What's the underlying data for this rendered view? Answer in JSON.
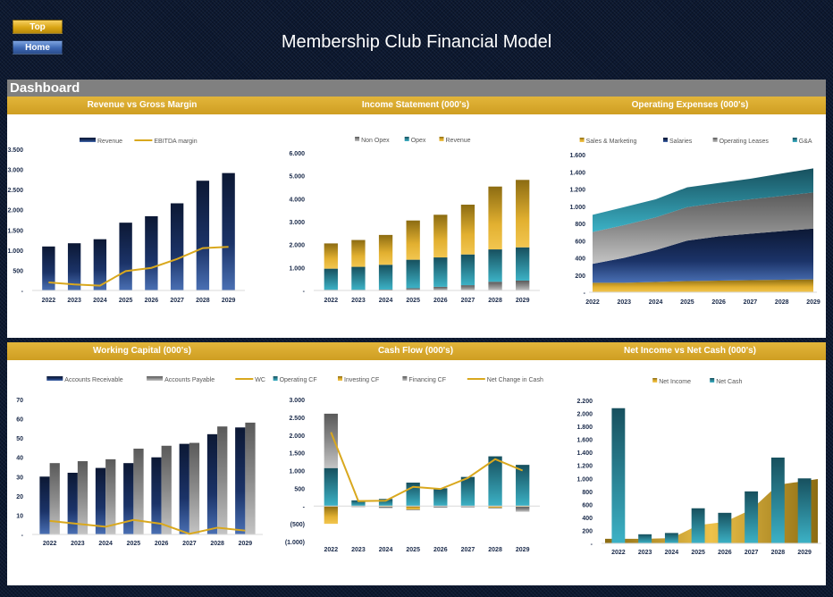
{
  "app": {
    "title": "Membership Club Financial Model",
    "top_button": "Top",
    "home_button": "Home",
    "section": "Dashboard"
  },
  "colors": {
    "navy": "#13285a",
    "teal": "#1e7f90",
    "gold": "#d9a81e",
    "gray": "#808080",
    "header_gold": "#d6a82c"
  },
  "chart_data": [
    {
      "title": "Revenue vs Gross Margin",
      "type": "bar",
      "categories": [
        "2022",
        "2023",
        "2024",
        "2025",
        "2026",
        "2027",
        "2028",
        "2029"
      ],
      "ylim": [
        0,
        3500
      ],
      "ticks": [
        0,
        500,
        1000,
        1500,
        2000,
        2500,
        3000,
        3500
      ],
      "tick_labels": [
        "-",
        "500",
        "1.000",
        "1.500",
        "2.000",
        "2.500",
        "3.000",
        "3.500"
      ],
      "series": [
        {
          "name": "Revenue",
          "kind": "bar",
          "color": "navy",
          "values": [
            1090,
            1170,
            1270,
            1680,
            1840,
            2160,
            2720,
            2910
          ]
        },
        {
          "name": "EBITDA margin",
          "kind": "line",
          "color": "gold",
          "values": [
            200,
            150,
            120,
            480,
            560,
            780,
            1050,
            1080
          ]
        }
      ]
    },
    {
      "title": "Income Statement (000's)",
      "type": "bar",
      "categories": [
        "2022",
        "2023",
        "2024",
        "2025",
        "2026",
        "2027",
        "2028",
        "2029"
      ],
      "ylim": [
        0,
        6000
      ],
      "ticks": [
        0,
        1000,
        2000,
        3000,
        4000,
        5000,
        6000
      ],
      "tick_labels": [
        "-",
        "1.000",
        "2.000",
        "3.000",
        "4.000",
        "5.000",
        "6.000"
      ],
      "series": [
        {
          "name": "Non Opex",
          "kind": "stack",
          "color": "gray",
          "values": [
            30,
            30,
            40,
            100,
            160,
            230,
            380,
            430
          ]
        },
        {
          "name": "Opex",
          "kind": "stack",
          "color": "teal",
          "values": [
            920,
            1000,
            1080,
            1240,
            1280,
            1340,
            1410,
            1450
          ]
        },
        {
          "name": "Revenue",
          "kind": "stack",
          "color": "gold",
          "values": [
            1100,
            1170,
            1300,
            1710,
            1860,
            2170,
            2740,
            2940
          ]
        }
      ]
    },
    {
      "title": "Operating Expenses (000's)",
      "type": "area",
      "categories": [
        "2022",
        "2023",
        "2024",
        "2025",
        "2026",
        "2027",
        "2028",
        "2029"
      ],
      "ylim": [
        0,
        1600
      ],
      "ticks": [
        0,
        200,
        400,
        600,
        800,
        1000,
        1200,
        1400,
        1600
      ],
      "tick_labels": [
        "-",
        "200",
        "400",
        "600",
        "800",
        "1.000",
        "1.200",
        "1.400",
        "1.600"
      ],
      "series": [
        {
          "name": "Sales & Marketing",
          "kind": "stackarea",
          "color": "gold",
          "values": [
            110,
            110,
            120,
            130,
            135,
            140,
            145,
            150
          ]
        },
        {
          "name": "Salaries",
          "kind": "stackarea",
          "color": "navy",
          "values": [
            220,
            290,
            370,
            470,
            515,
            540,
            565,
            590
          ]
        },
        {
          "name": "Operating Leases",
          "kind": "stackarea",
          "color": "gray",
          "values": [
            370,
            380,
            380,
            390,
            390,
            400,
            410,
            420
          ]
        },
        {
          "name": "G&A",
          "kind": "stackarea",
          "color": "teal",
          "values": [
            200,
            210,
            210,
            230,
            230,
            240,
            260,
            280
          ]
        }
      ]
    },
    {
      "title": "Working Capital (000's)",
      "type": "bar",
      "categories": [
        "2022",
        "2023",
        "2024",
        "2025",
        "2026",
        "2027",
        "2028",
        "2029"
      ],
      "ylim": [
        0,
        70
      ],
      "ticks": [
        0,
        10,
        20,
        30,
        40,
        50,
        60,
        70
      ],
      "tick_labels": [
        "-",
        "10",
        "20",
        "30",
        "40",
        "50",
        "60",
        "70"
      ],
      "series": [
        {
          "name": "Accounts Receivable",
          "kind": "bar",
          "color": "navy",
          "values": [
            30,
            32,
            34.5,
            37,
            40,
            47,
            52,
            55.5
          ]
        },
        {
          "name": "Accounts Payable",
          "kind": "bar",
          "color": "gray",
          "values": [
            37,
            38,
            39,
            44.5,
            46,
            47.5,
            56,
            58
          ]
        },
        {
          "name": "WC",
          "kind": "line",
          "color": "gold",
          "values": [
            7,
            5.5,
            4,
            7.5,
            5.5,
            0.3,
            3.5,
            2
          ]
        }
      ]
    },
    {
      "title": "Cash Flow (000's)",
      "type": "bar",
      "categories": [
        "2022",
        "2023",
        "2024",
        "2025",
        "2026",
        "2027",
        "2028",
        "2029"
      ],
      "ylim": [
        -1000,
        3000
      ],
      "ticks": [
        -1000,
        -500,
        0,
        500,
        1000,
        1500,
        2000,
        2500,
        3000
      ],
      "tick_labels": [
        "(1.000)",
        "(500)",
        "-",
        "500",
        "1.000",
        "1.500",
        "2.000",
        "2.500",
        "3.000"
      ],
      "series": [
        {
          "name": "Operating CF",
          "kind": "stack",
          "color": "teal",
          "values": [
            1070,
            160,
            200,
            660,
            500,
            820,
            1400,
            1160
          ]
        },
        {
          "name": "Investing CF",
          "kind": "stack",
          "color": "gold",
          "values": [
            -500,
            -10,
            -20,
            -100,
            -10,
            -10,
            -50,
            -20
          ]
        },
        {
          "name": "Financing CF",
          "kind": "stack",
          "color": "gray",
          "values": [
            1530,
            -20,
            -40,
            -20,
            -40,
            -30,
            -20,
            -140
          ]
        },
        {
          "name": "Net Change in Cash",
          "kind": "line",
          "color": "gold",
          "values": [
            2080,
            140,
            150,
            540,
            480,
            790,
            1320,
            1000
          ]
        }
      ]
    },
    {
      "title": "Net Income vs Net Cash (000's)",
      "type": "bar",
      "categories": [
        "2022",
        "2023",
        "2024",
        "2025",
        "2026",
        "2027",
        "2028",
        "2029"
      ],
      "ylim": [
        0,
        2200
      ],
      "ticks": [
        0,
        200,
        400,
        600,
        800,
        1000,
        1200,
        1400,
        1600,
        1800,
        2000,
        2200
      ],
      "tick_labels": [
        "-",
        "200",
        "400",
        "600",
        "800",
        "1.000",
        "1.200",
        "1.400",
        "1.600",
        "1.800",
        "2.000",
        "2.200"
      ],
      "series": [
        {
          "name": "Net Income",
          "kind": "area",
          "color": "gold",
          "values": [
            70,
            70,
            80,
            280,
            330,
            520,
            900,
            990
          ]
        },
        {
          "name": "Net Cash",
          "kind": "bar",
          "color": "teal",
          "values": [
            2080,
            140,
            160,
            540,
            470,
            800,
            1320,
            1000
          ]
        }
      ]
    }
  ]
}
